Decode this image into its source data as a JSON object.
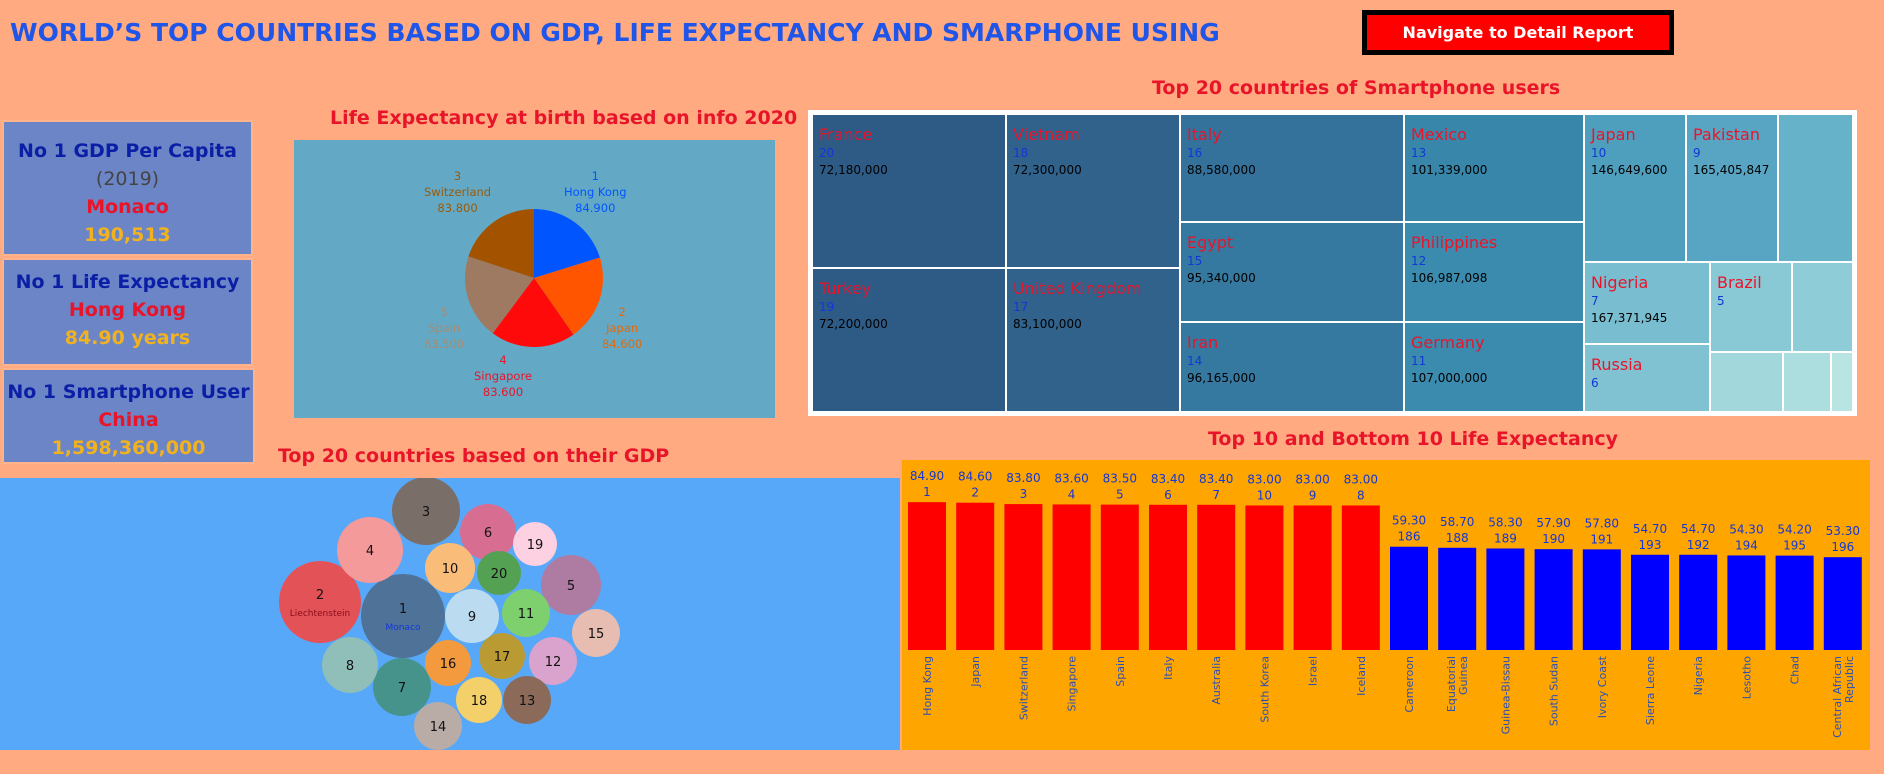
{
  "header": {
    "title": "WORLD’S TOP COUNTRIES BASED ON GDP, LIFE EXPECTANCY AND SMARPHONE USING",
    "nav_button": "Navigate to Detail Report"
  },
  "kpis": {
    "gdp": {
      "label": "No 1 GDP Per Capita",
      "year": "(2019)",
      "country": "Monaco",
      "value": "190,513"
    },
    "life": {
      "label": "No 1 Life Expectancy",
      "country": "Hong Kong",
      "value": "84.90 years"
    },
    "phone": {
      "label": "No 1 Smartphone User",
      "country": "China",
      "value": "1,598,360,000"
    }
  },
  "pie": {
    "title": "Life Expectancy at birth  based on info 2020",
    "labels": [
      {
        "rank": "1",
        "country": "Hong Kong",
        "value": "84.900"
      },
      {
        "rank": "2",
        "country": "Japan",
        "value": "84.600"
      },
      {
        "rank": "4",
        "country": "Singapore",
        "value": "83.600"
      },
      {
        "rank": "5",
        "country": "Spain",
        "value": "83.500"
      },
      {
        "rank": "3",
        "country": "Switzerland",
        "value": "83.800"
      }
    ]
  },
  "treemap": {
    "title": "Top 20 countries of Smartphone users",
    "cells": [
      {
        "name": "France",
        "rank": "20",
        "value": "72,180,000"
      },
      {
        "name": "Turkey",
        "rank": "19",
        "value": "72,200,000"
      },
      {
        "name": "Vietnam",
        "rank": "18",
        "value": "72,300,000"
      },
      {
        "name": "United Kingdom",
        "rank": "17",
        "value": "83,100,000"
      },
      {
        "name": "Italy",
        "rank": "16",
        "value": "88,580,000"
      },
      {
        "name": "Egypt",
        "rank": "15",
        "value": "95,340,000"
      },
      {
        "name": "Iran",
        "rank": "14",
        "value": "96,165,000"
      },
      {
        "name": "Mexico",
        "rank": "13",
        "value": "101,339,000"
      },
      {
        "name": "Philippines",
        "rank": "12",
        "value": "106,987,098"
      },
      {
        "name": "Germany",
        "rank": "11",
        "value": "107,000,000"
      },
      {
        "name": "Japan",
        "rank": "10",
        "value": "146,649,600"
      },
      {
        "name": "Pakistan",
        "rank": "9",
        "value": "165,405,847"
      },
      {
        "name": "Nigeria",
        "rank": "7",
        "value": "167,371,945"
      },
      {
        "name": "Brazil",
        "rank": "5",
        "value": ""
      },
      {
        "name": "Russia",
        "rank": "6",
        "value": ""
      }
    ]
  },
  "bubbles": {
    "title": "Top 20 countries based on their GDP",
    "items": [
      {
        "rank": "1",
        "country": "Monaco"
      },
      {
        "rank": "2",
        "country": "Liechtenstein"
      },
      {
        "rank": "3",
        "country": ""
      },
      {
        "rank": "4",
        "country": ""
      },
      {
        "rank": "5",
        "country": ""
      },
      {
        "rank": "6",
        "country": ""
      },
      {
        "rank": "7",
        "country": ""
      },
      {
        "rank": "8",
        "country": ""
      },
      {
        "rank": "9",
        "country": ""
      },
      {
        "rank": "10",
        "country": ""
      },
      {
        "rank": "11",
        "country": ""
      },
      {
        "rank": "12",
        "country": ""
      },
      {
        "rank": "13",
        "country": ""
      },
      {
        "rank": "14",
        "country": ""
      },
      {
        "rank": "15",
        "country": ""
      },
      {
        "rank": "16",
        "country": ""
      },
      {
        "rank": "17",
        "country": ""
      },
      {
        "rank": "18",
        "country": ""
      },
      {
        "rank": "19",
        "country": ""
      },
      {
        "rank": "20",
        "country": ""
      }
    ]
  },
  "chart_data": [
    {
      "type": "pie",
      "title": "Life Expectancy at birth  based on info 2020",
      "categories": [
        "Hong Kong",
        "Japan",
        "Singapore",
        "Spain",
        "Switzerland"
      ],
      "values": [
        84.9,
        84.6,
        83.6,
        83.5,
        83.8
      ],
      "colors": [
        "#0055FF",
        "#FF5500",
        "#FF0A0A",
        "#9E7A63",
        "#A35200"
      ]
    },
    {
      "type": "bar",
      "title": "Top 10 and Bottom 10 Life Expectancy",
      "categories": [
        "Hong Kong",
        "Japan",
        "Switzerland",
        "Singapore",
        "Spain",
        "Italy",
        "Australia",
        "South Korea",
        "Israel",
        "Iceland",
        "Cameroon",
        "Equatorial Guinea",
        "Guinea-Bissau",
        "South Sudan",
        "Ivory Coast",
        "Sierra Leone",
        "Nigeria",
        "Lesotho",
        "Chad",
        "Central African Republic"
      ],
      "values": [
        84.9,
        84.6,
        83.8,
        83.6,
        83.5,
        83.4,
        83.4,
        83.0,
        83.0,
        83.0,
        59.3,
        58.7,
        58.3,
        57.9,
        57.8,
        54.7,
        54.7,
        54.3,
        54.2,
        53.3
      ],
      "value_labels": [
        "84.90",
        "84.60",
        "83.80",
        "83.60",
        "83.50",
        "83.40",
        "83.40",
        "83.00",
        "83.00",
        "83.00",
        "59.30",
        "58.70",
        "58.30",
        "57.90",
        "57.80",
        "54.70",
        "54.70",
        "54.30",
        "54.20",
        "53.30"
      ],
      "ranks": [
        "1",
        "2",
        "3",
        "4",
        "5",
        "6",
        "7",
        "10",
        "9",
        "8",
        "186",
        "188",
        "189",
        "190",
        "191",
        "193",
        "192",
        "194",
        "195",
        "196"
      ],
      "series_colors": [
        "#FF0000",
        "#0000FF"
      ],
      "ylim": [
        0,
        85
      ]
    },
    {
      "type": "bubble",
      "title": "Top 20 countries based on their GDP",
      "ranks": [
        1,
        2,
        3,
        4,
        5,
        6,
        7,
        8,
        9,
        10,
        11,
        12,
        13,
        14,
        15,
        16,
        17,
        18,
        19,
        20
      ]
    }
  ]
}
